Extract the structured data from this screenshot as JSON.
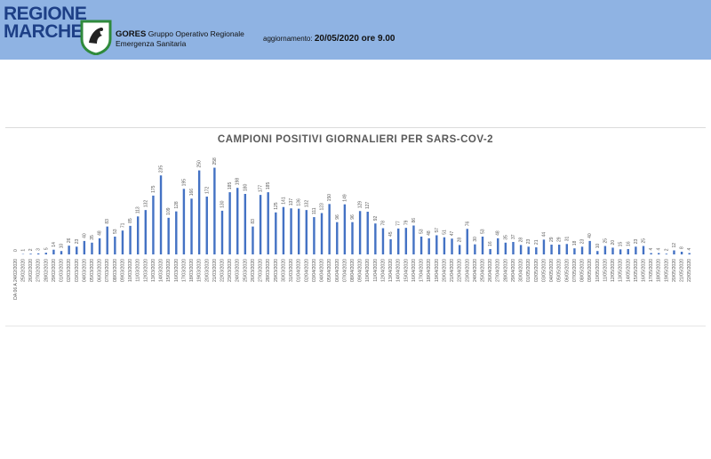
{
  "header": {
    "logo_line1": "REGIONE",
    "logo_line2": "MARCHE",
    "org_name": "GORES",
    "org_line1": "Gruppo Operativo Regionale",
    "org_line2": "Emergenza Sanitaria",
    "update_label": "aggiornamento:",
    "update_value": "20/05/2020 ore 9.00"
  },
  "colors": {
    "bar": "#4472c4",
    "header_bg": "#8fb3e3",
    "logo_text": "#1d3f86",
    "emblem": "#2f8a3c"
  },
  "chart_data": {
    "type": "bar",
    "title": "CAMPIONI POSITIVI GIORNALIERI PER SARS-COV-2",
    "categories": [
      "DA 06 A 24/02/2020",
      "25/02/2020",
      "26/02/2020",
      "27/02/2020",
      "28/02/2020",
      "29/02/2020",
      "01/03/2020",
      "02/03/2020",
      "03/03/2020",
      "04/03/2020",
      "05/03/2020",
      "06/03/2020",
      "07/03/2020",
      "08/03/2020",
      "09/03/2020",
      "10/03/2020",
      "11/03/2020",
      "12/03/2020",
      "13/03/2020",
      "14/03/2020",
      "15/03/2020",
      "16/03/2020",
      "17/03/2020",
      "18/03/2020",
      "19/03/2020",
      "20/03/2020",
      "21/03/2020",
      "22/03/2020",
      "23/03/2020",
      "24/03/2020",
      "25/03/2020",
      "26/03/2020",
      "27/03/2020",
      "28/03/2020",
      "29/03/2020",
      "30/03/2020",
      "31/03/2020",
      "01/04/2020",
      "02/04/2020",
      "03/04/2020",
      "04/04/2020",
      "05/04/2020",
      "06/04/2020",
      "07/04/2020",
      "08/04/2020",
      "09/04/2020",
      "10/04/2020",
      "11/04/2020",
      "12/04/2020",
      "13/04/2020",
      "14/04/2020",
      "15/04/2020",
      "16/04/2020",
      "17/04/2020",
      "18/04/2020",
      "19/04/2020",
      "20/04/2020",
      "21/04/2020",
      "22/04/2020",
      "23/04/2020",
      "24/04/2020",
      "25/04/2020",
      "26/04/2020",
      "27/04/2020",
      "28/04/2020",
      "29/04/2020",
      "30/04/2020",
      "01/05/2020",
      "02/05/2020",
      "03/05/2020",
      "04/05/2020",
      "05/05/2020",
      "06/05/2020",
      "07/05/2020",
      "08/05/2020",
      "09/05/2020",
      "10/05/2020",
      "11/05/2020",
      "12/05/2020",
      "13/05/2020",
      "14/05/2020",
      "15/05/2020",
      "16/05/2020",
      "17/05/2020",
      "18/05/2020",
      "19/05/2020",
      "20/05/2020",
      "21/05/2020",
      "22/05/2020"
    ],
    "values": [
      0,
      1,
      2,
      3,
      5,
      14,
      10,
      26,
      23,
      40,
      35,
      48,
      83,
      53,
      71,
      85,
      113,
      132,
      175,
      235,
      109,
      128,
      195,
      166,
      250,
      172,
      258,
      130,
      185,
      198,
      180,
      83,
      177,
      185,
      125,
      141,
      137,
      136,
      132,
      111,
      123,
      150,
      96,
      149,
      96,
      129,
      127,
      92,
      78,
      45,
      77,
      79,
      86,
      53,
      48,
      57,
      51,
      47,
      28,
      76,
      30,
      53,
      16,
      48,
      35,
      37,
      28,
      23,
      21,
      44,
      29,
      29,
      31,
      18,
      23,
      40,
      10,
      25,
      20,
      15,
      16,
      23,
      25,
      4,
      4,
      2,
      12,
      8,
      4
    ],
    "ylim": [
      0,
      270
    ],
    "data_labels": true,
    "grid": false,
    "legend": "none"
  }
}
